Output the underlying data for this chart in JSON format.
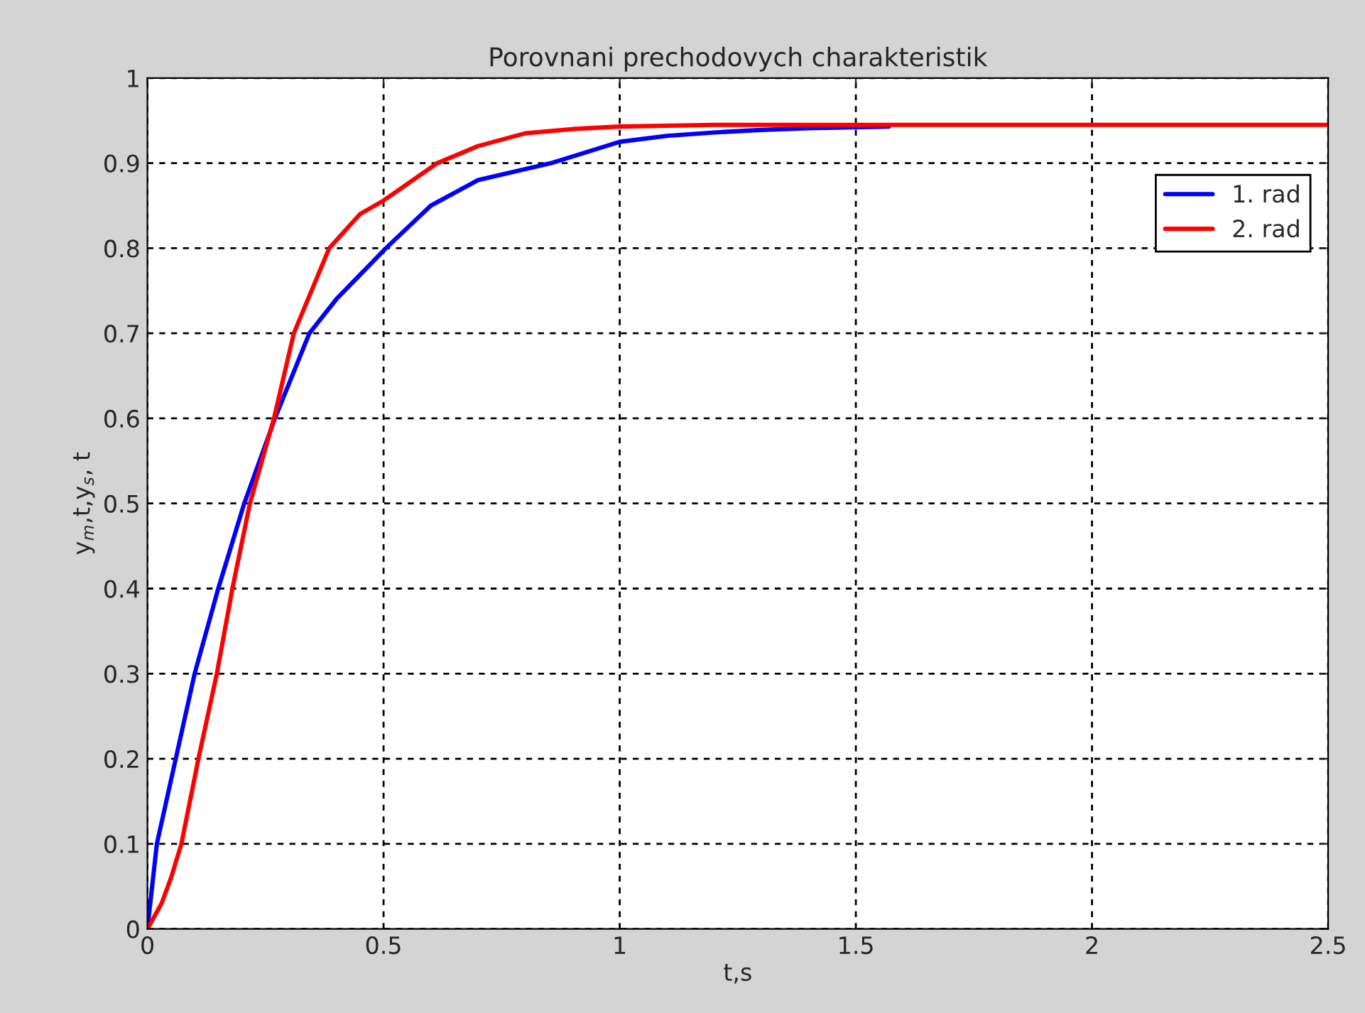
{
  "chart_data": {
    "type": "line",
    "title": "Porovnani prechodovych charakteristik",
    "xlabel": "t,s",
    "ylabel": "y$_{m}$,t,y$_{s}$, t",
    "xlim": [
      0,
      2.5
    ],
    "xticks": [
      0,
      0.5,
      1,
      1.5,
      2,
      2.5
    ],
    "ylim": [
      0,
      1
    ],
    "yticks": [
      0,
      0.1,
      0.2,
      0.3,
      0.4,
      0.5,
      0.6,
      0.7,
      0.8,
      0.9,
      1
    ],
    "grid": true,
    "legend": "top right",
    "line_style": "solid",
    "marker": "none",
    "series": [
      {
        "name": "1. rad",
        "color": "#0000ff",
        "x": [
          0,
          0.02,
          0.06,
          0.1,
          0.15,
          0.205,
          0.27,
          0.343,
          0.4,
          0.505,
          0.6,
          0.7,
          0.855,
          1.0,
          1.1,
          1.2,
          1.3,
          1.4,
          1.57
        ],
        "values": [
          0,
          0.1,
          0.2,
          0.3,
          0.4,
          0.5,
          0.6,
          0.7,
          0.74,
          0.8,
          0.85,
          0.88,
          0.9,
          0.925,
          0.932,
          0.936,
          0.939,
          0.941,
          0.943
        ]
      },
      {
        "name": "2. rad",
        "color": "#ff0000",
        "x": [
          0,
          0.03,
          0.05,
          0.072,
          0.108,
          0.147,
          0.18,
          0.217,
          0.268,
          0.31,
          0.385,
          0.45,
          0.5,
          0.614,
          0.7,
          0.8,
          0.9,
          1.0,
          1.2,
          1.5,
          2.0,
          2.5
        ],
        "values": [
          0,
          0.03,
          0.06,
          0.1,
          0.2,
          0.3,
          0.4,
          0.5,
          0.6,
          0.7,
          0.8,
          0.84,
          0.856,
          0.9,
          0.92,
          0.935,
          0.94,
          0.943,
          0.945,
          0.945,
          0.945,
          0.945
        ]
      }
    ]
  }
}
